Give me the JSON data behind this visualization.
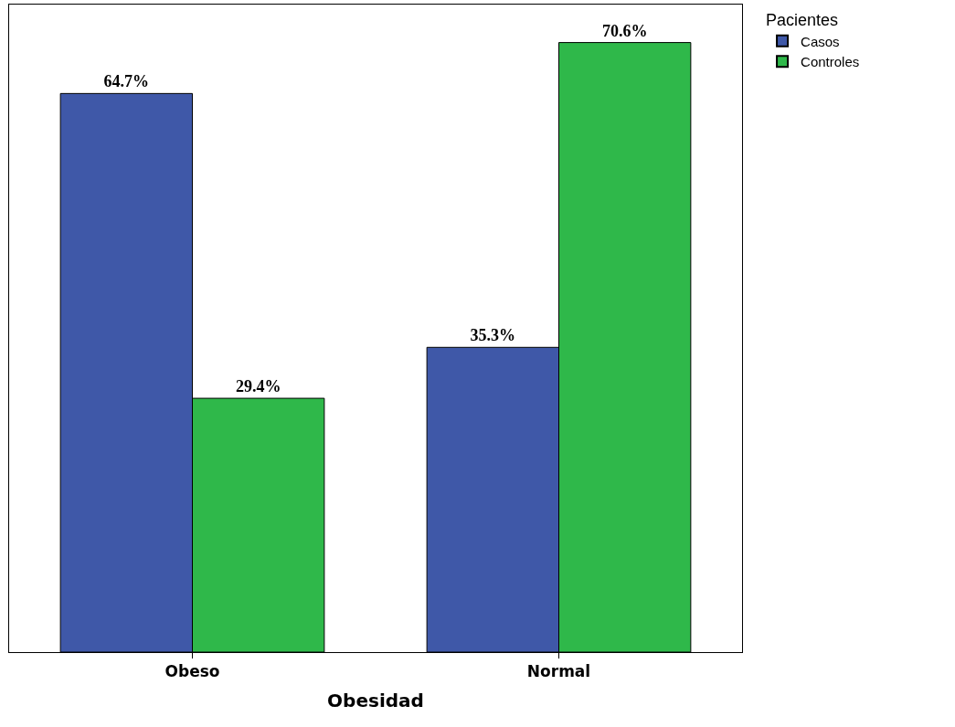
{
  "chart_data": {
    "type": "bar",
    "xlabel": "Obesidad",
    "legend_title": "Pacientes",
    "categories": [
      "Obeso",
      "Normal"
    ],
    "series": [
      {
        "name": "Casos",
        "color": "#3f58a8",
        "values": [
          64.7,
          35.3
        ],
        "value_labels": [
          "64.7%",
          "35.3%"
        ]
      },
      {
        "name": "Controles",
        "color": "#2fb84a",
        "values": [
          29.4,
          70.6
        ],
        "value_labels": [
          "29.4%",
          "70.6%"
        ]
      }
    ],
    "ylim": [
      0,
      75
    ],
    "legend": "top right",
    "tick_labels": "x"
  }
}
